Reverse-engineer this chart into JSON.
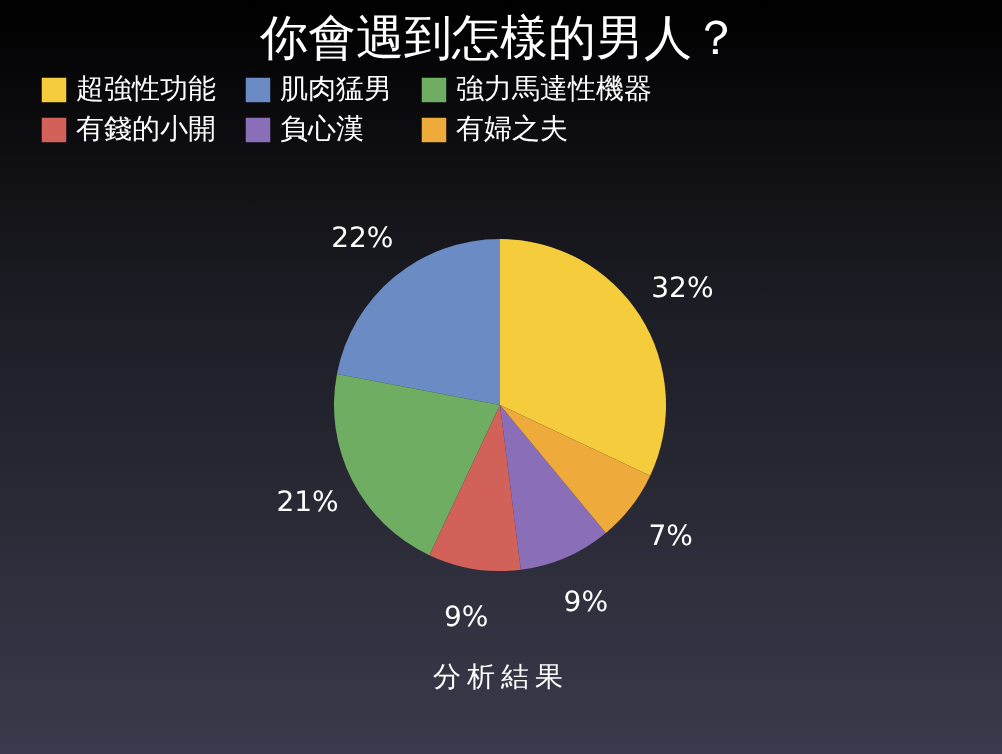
{
  "chart_data": {
    "type": "pie",
    "title": "你會遇到怎樣的男人？",
    "categories": [
      "超強性功能",
      "肌肉猛男",
      "強力馬達性機器",
      "有錢的小開",
      "負心漢",
      "有婦之夫"
    ],
    "values": [
      32,
      22,
      21,
      9,
      9,
      7
    ],
    "colors": [
      "#f5cd3c",
      "#6b8bc4",
      "#6fae62",
      "#d2615a",
      "#8a6fb8",
      "#eeaa3a"
    ],
    "value_labels": [
      "32%",
      "22%",
      "21%",
      "9%",
      "9%",
      "7%"
    ],
    "legend": "top",
    "annotations": [
      "分析結果"
    ]
  }
}
